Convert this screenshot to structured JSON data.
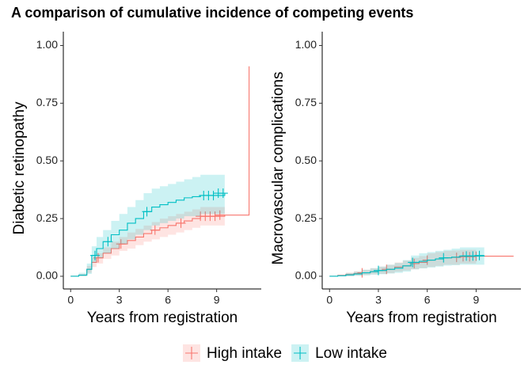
{
  "chart_data": [
    {
      "type": "step",
      "title": "A comparison of cumulative incidence of competing events",
      "y_label": "Diabetic retinopathy",
      "x_label": "Years from registration",
      "xlim": [
        -0.45,
        11.75
      ],
      "xticks": [
        0,
        3,
        6,
        9
      ],
      "ylim": [
        -0.055,
        1.06
      ],
      "yticks": [
        {
          "value": 0,
          "label": "0.00"
        },
        {
          "value": 0.25,
          "label": "0.25"
        },
        {
          "value": 0.5,
          "label": "0.50"
        },
        {
          "value": 0.75,
          "label": "0.75"
        },
        {
          "value": 1,
          "label": "1.00"
        }
      ],
      "legend": "bottom",
      "series": [
        {
          "name": "High intake",
          "color": "#F8766D",
          "x": [
            0,
            0.5,
            1,
            1.3,
            1.6,
            2,
            2.5,
            3,
            3.5,
            4,
            4.5,
            5,
            5.5,
            6,
            6.5,
            7,
            7.5,
            8,
            9.5,
            11
          ],
          "values": [
            0,
            0.005,
            0.03,
            0.06,
            0.08,
            0.1,
            0.12,
            0.14,
            0.155,
            0.17,
            0.185,
            0.2,
            0.21,
            0.22,
            0.23,
            0.24,
            0.25,
            0.26,
            0.265,
            0.91
          ],
          "lower": [
            0,
            0,
            0.015,
            0.04,
            0.055,
            0.075,
            0.09,
            0.11,
            0.12,
            0.135,
            0.15,
            0.16,
            0.17,
            0.18,
            0.19,
            0.2,
            0.21,
            0.22,
            0.225,
            null
          ],
          "upper": [
            0,
            0.01,
            0.045,
            0.08,
            0.1,
            0.125,
            0.15,
            0.17,
            0.19,
            0.205,
            0.22,
            0.235,
            0.25,
            0.26,
            0.27,
            0.28,
            0.29,
            0.3,
            0.305,
            null
          ],
          "censored": {
            "x": [
              1.7,
              3.1,
              5.2,
              6.8,
              8,
              8.3,
              8.6,
              8.9,
              9.2
            ],
            "values": [
              0.08,
              0.14,
              0.2,
              0.23,
              0.26,
              0.26,
              0.26,
              0.26,
              0.265
            ]
          }
        },
        {
          "name": "Low intake",
          "color": "#00BFC4",
          "x": [
            0,
            0.5,
            1,
            1.3,
            1.6,
            2,
            2.5,
            3,
            3.5,
            4,
            4.5,
            5,
            5.5,
            6,
            6.5,
            7,
            7.5,
            8,
            9.5
          ],
          "values": [
            0,
            0.005,
            0.03,
            0.09,
            0.12,
            0.15,
            0.18,
            0.2,
            0.23,
            0.25,
            0.28,
            0.3,
            0.31,
            0.32,
            0.33,
            0.34,
            0.345,
            0.35,
            0.36
          ],
          "lower": [
            0,
            0,
            0.01,
            0.06,
            0.08,
            0.1,
            0.12,
            0.14,
            0.16,
            0.18,
            0.2,
            0.22,
            0.23,
            0.24,
            0.25,
            0.26,
            0.26,
            0.27,
            0.27
          ],
          "upper": [
            0,
            0.015,
            0.055,
            0.13,
            0.17,
            0.2,
            0.24,
            0.27,
            0.3,
            0.33,
            0.36,
            0.38,
            0.39,
            0.4,
            0.41,
            0.42,
            0.43,
            0.44,
            0.45
          ],
          "censored": {
            "x": [
              1.5,
              2.3,
              4.7,
              8.2,
              8.5,
              8.8,
              9.1,
              9.4
            ],
            "values": [
              0.09,
              0.15,
              0.28,
              0.35,
              0.35,
              0.35,
              0.36,
              0.36
            ]
          }
        }
      ]
    },
    {
      "type": "step",
      "y_label": "Macrovascular complications",
      "x_label": "Years from registration",
      "xlim": [
        -0.45,
        11.75
      ],
      "xticks": [
        0,
        3,
        6,
        9
      ],
      "ylim": [
        -0.055,
        1.06
      ],
      "yticks": [
        {
          "value": 0,
          "label": "0.00"
        },
        {
          "value": 0.25,
          "label": "0.25"
        },
        {
          "value": 0.5,
          "label": "0.50"
        },
        {
          "value": 0.75,
          "label": "0.75"
        },
        {
          "value": 1,
          "label": "1.00"
        }
      ],
      "series": [
        {
          "name": "High intake",
          "color": "#F8766D",
          "x": [
            0,
            0.5,
            1,
            1.5,
            2,
            2.5,
            3,
            3.5,
            4,
            4.5,
            5,
            5.5,
            6,
            6.5,
            7,
            7.5,
            8,
            9,
            11.3
          ],
          "values": [
            0,
            0.003,
            0.008,
            0.012,
            0.015,
            0.02,
            0.025,
            0.03,
            0.04,
            0.045,
            0.055,
            0.06,
            0.07,
            0.075,
            0.08,
            0.082,
            0.085,
            0.087,
            0.087
          ],
          "lower": [
            0,
            0,
            0,
            0.003,
            0.005,
            0.008,
            0.01,
            0.013,
            0.02,
            0.025,
            0.03,
            0.035,
            0.04,
            0.045,
            0.05,
            0.05,
            0.055,
            0.055,
            null
          ],
          "upper": [
            0,
            0.008,
            0.016,
            0.022,
            0.028,
            0.035,
            0.042,
            0.05,
            0.06,
            0.068,
            0.08,
            0.088,
            0.1,
            0.105,
            0.11,
            0.112,
            0.115,
            0.118,
            null
          ],
          "censored": {
            "x": [
              2,
              3.5,
              5.2,
              6,
              7.8,
              8.2,
              8.6,
              9
            ],
            "values": [
              0.015,
              0.03,
              0.055,
              0.07,
              0.082,
              0.085,
              0.085,
              0.087
            ]
          }
        },
        {
          "name": "Low intake",
          "color": "#00BFC4",
          "x": [
            0,
            0.5,
            1,
            1.5,
            2,
            2.5,
            3,
            3.5,
            4,
            4.5,
            5,
            5.5,
            6,
            6.5,
            7,
            7.5,
            8,
            9.5
          ],
          "values": [
            0,
            0.002,
            0.006,
            0.01,
            0.015,
            0.02,
            0.025,
            0.03,
            0.035,
            0.045,
            0.06,
            0.065,
            0.07,
            0.075,
            0.08,
            0.083,
            0.088,
            0.09
          ],
          "lower": [
            0,
            0,
            0,
            0.002,
            0.004,
            0.007,
            0.009,
            0.012,
            0.015,
            0.02,
            0.03,
            0.034,
            0.038,
            0.042,
            0.046,
            0.048,
            0.05,
            0.05
          ],
          "upper": [
            0,
            0.007,
            0.014,
            0.02,
            0.028,
            0.035,
            0.042,
            0.05,
            0.058,
            0.07,
            0.09,
            0.1,
            0.105,
            0.11,
            0.115,
            0.12,
            0.125,
            0.13
          ],
          "censored": {
            "x": [
              3,
              5.1,
              7,
              8.4,
              8.8,
              9.2
            ],
            "values": [
              0.025,
              0.06,
              0.08,
              0.088,
              0.088,
              0.09
            ]
          }
        }
      ]
    }
  ]
}
